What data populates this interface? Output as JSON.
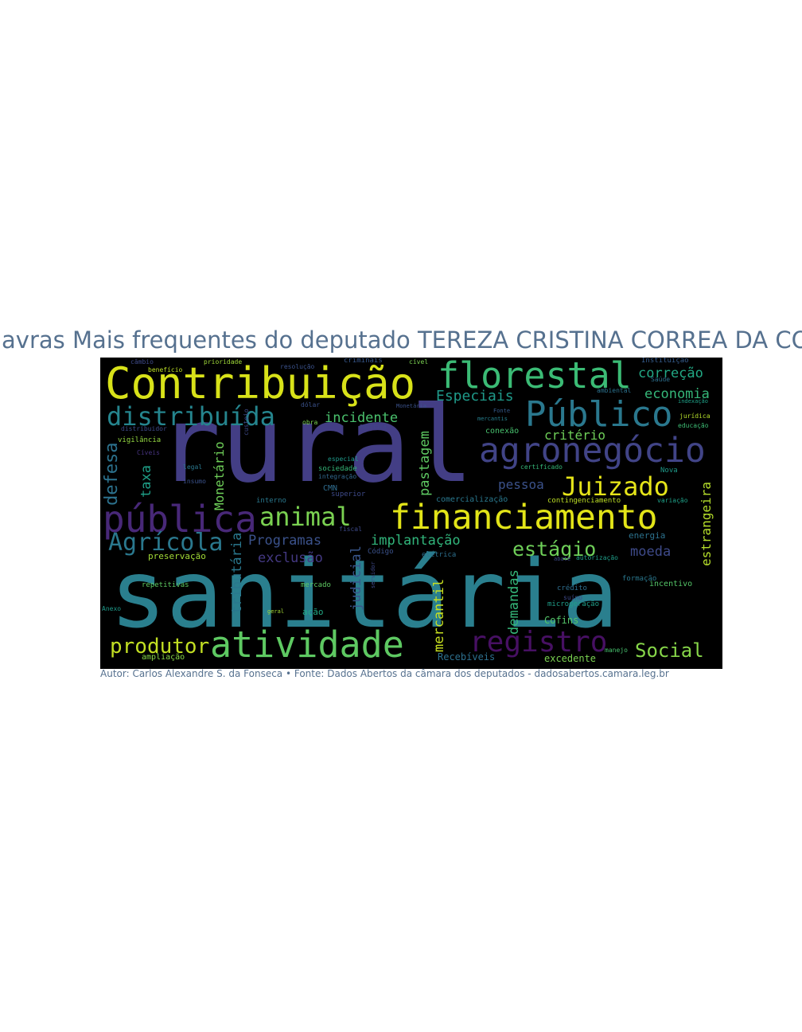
{
  "title": "Palavras Mais frequentes do deputado TEREZA CRISTINA CORREA DA COSTA DIAS",
  "footer": "Autor: Carlos Alexandre S. da Fonseca • Fonte: Dados Abertos da câmara dos deputados - dadosabertos.camara.leg.br",
  "colors": {
    "text_accent": "#56718f",
    "background": "#ffffff",
    "cloud_background": "#000000"
  },
  "words": [
    {
      "text": "sanitária",
      "color": "#2a7f8e"
    },
    {
      "text": "rural",
      "color": "#433e85"
    },
    {
      "text": "Contribuição",
      "color": "#d8e219"
    },
    {
      "text": "florestal",
      "color": "#3bbb75"
    },
    {
      "text": "financiamento",
      "color": "#e2e418"
    },
    {
      "text": "agronegócio",
      "color": "#414487"
    },
    {
      "text": "Público",
      "color": "#2a788e"
    },
    {
      "text": "pública",
      "color": "#482878"
    },
    {
      "text": "atividade",
      "color": "#5ec962"
    },
    {
      "text": "distribuída",
      "color": "#25858e"
    },
    {
      "text": "registro",
      "color": "#471063"
    },
    {
      "text": "Agrícola",
      "color": "#2a788e"
    },
    {
      "text": "animal",
      "color": "#7ad151"
    },
    {
      "text": "Juizado",
      "color": "#e5e419"
    },
    {
      "text": "produtor",
      "color": "#c2df23"
    },
    {
      "text": "Social",
      "color": "#86d549"
    },
    {
      "text": "estágio",
      "color": "#6ece58"
    },
    {
      "text": "defesa",
      "color": "#2c728e"
    },
    {
      "text": "Especiais",
      "color": "#1f9a8a"
    },
    {
      "text": "correção",
      "color": "#22a884"
    },
    {
      "text": "economia",
      "color": "#35b779"
    },
    {
      "text": "incidente",
      "color": "#4ac16d"
    },
    {
      "text": "critério",
      "color": "#6ece58"
    },
    {
      "text": "pessoa",
      "color": "#3b528b"
    },
    {
      "text": "Programas",
      "color": "#3b528b"
    },
    {
      "text": "exclusão",
      "color": "#443983"
    },
    {
      "text": "implantação",
      "color": "#31b57b"
    },
    {
      "text": "moeda",
      "color": "#3e4a89"
    },
    {
      "text": "Monetário",
      "color": "#6ece58"
    },
    {
      "text": "taxa",
      "color": "#1fa088"
    },
    {
      "text": "pastagem",
      "color": "#5ec962"
    },
    {
      "text": "tributária",
      "color": "#2a788e"
    },
    {
      "text": "judicial",
      "color": "#39568c"
    },
    {
      "text": "mercantil",
      "color": "#c8e020"
    },
    {
      "text": "demandas",
      "color": "#35b779"
    },
    {
      "text": "estrangeira",
      "color": "#b5de2b"
    },
    {
      "text": "Recebíveis",
      "color": "#2d708e"
    },
    {
      "text": "excedente",
      "color": "#7ad151"
    },
    {
      "text": "preservação",
      "color": "#a2da37"
    },
    {
      "text": "repetitivas",
      "color": "#5ec962"
    },
    {
      "text": "contingenciamento",
      "color": "#bddf26"
    },
    {
      "text": "comercialização",
      "color": "#2a788e"
    },
    {
      "text": "conexão",
      "color": "#48c16e"
    },
    {
      "text": "Cofins",
      "color": "#54c568"
    },
    {
      "text": "energia",
      "color": "#2c728e"
    },
    {
      "text": "incentivo",
      "color": "#54c568"
    },
    {
      "text": "microgeração",
      "color": "#1f9e89"
    },
    {
      "text": "crédito",
      "color": "#2e6e8e"
    },
    {
      "text": "suíno",
      "color": "#3e4989"
    },
    {
      "text": "elétrica",
      "color": "#2d708e"
    },
    {
      "text": "Código",
      "color": "#3b528b"
    },
    {
      "text": "mercado",
      "color": "#5ec962"
    },
    {
      "text": "ação",
      "color": "#22a884"
    },
    {
      "text": "ampliação",
      "color": "#86d549"
    },
    {
      "text": "Anexo",
      "color": "#1f9a8a"
    },
    {
      "text": "vigilância",
      "color": "#93d741"
    },
    {
      "text": "interno",
      "color": "#2a788e"
    },
    {
      "text": "CMN",
      "color": "#2f6c8e"
    },
    {
      "text": "superior",
      "color": "#3e4a89"
    },
    {
      "text": "sociedade",
      "color": "#35b779"
    },
    {
      "text": "especial",
      "color": "#1f9a8a"
    },
    {
      "text": "legal",
      "color": "#2a788e"
    },
    {
      "text": "insumo",
      "color": "#3b528b"
    },
    {
      "text": "Cíveis",
      "color": "#46337e"
    },
    {
      "text": "custeio",
      "color": "#3e4a89"
    },
    {
      "text": "dólar",
      "color": "#3b528b"
    },
    {
      "text": "obra",
      "color": "#7ad151"
    },
    {
      "text": "Política",
      "color": "#404688"
    },
    {
      "text": "câmbio",
      "color": "#3e4a89"
    },
    {
      "text": "benefício",
      "color": "#bddf26"
    },
    {
      "text": "prioridade",
      "color": "#a0da39"
    },
    {
      "text": "resolução",
      "color": "#3b528b"
    },
    {
      "text": "criminais",
      "color": "#38588c"
    },
    {
      "text": "cível",
      "color": "#7ad151"
    },
    {
      "text": "Instituição",
      "color": "#365c8d"
    },
    {
      "text": "Saúde",
      "color": "#2d708e"
    },
    {
      "text": "ambiental",
      "color": "#2c728e"
    },
    {
      "text": "indexação",
      "color": "#1fa188"
    },
    {
      "text": "jurídica",
      "color": "#b5de2b"
    },
    {
      "text": "educação",
      "color": "#3dbc74"
    },
    {
      "text": "Nova",
      "color": "#1f9a8a"
    },
    {
      "text": "variação",
      "color": "#1fa188"
    },
    {
      "text": "certificado",
      "color": "#35b779"
    },
    {
      "text": "Fonte",
      "color": "#365c8d"
    },
    {
      "text": "mercantis",
      "color": "#277f8e"
    },
    {
      "text": "Monetária",
      "color": "#3b528b"
    },
    {
      "text": "integração",
      "color": "#31688e"
    },
    {
      "text": "fiscal",
      "color": "#3e4a89"
    },
    {
      "text": "geral",
      "color": "#a5db36"
    },
    {
      "text": "servidor",
      "color": "#3e4a89"
    },
    {
      "text": "formação",
      "color": "#2a788e"
    },
    {
      "text": "autorização",
      "color": "#1f9e89"
    },
    {
      "text": "abate",
      "color": "#3e4a89"
    },
    {
      "text": "manejo",
      "color": "#48c16e"
    },
    {
      "text": "distribuidor",
      "color": "#3e4a89"
    }
  ]
}
